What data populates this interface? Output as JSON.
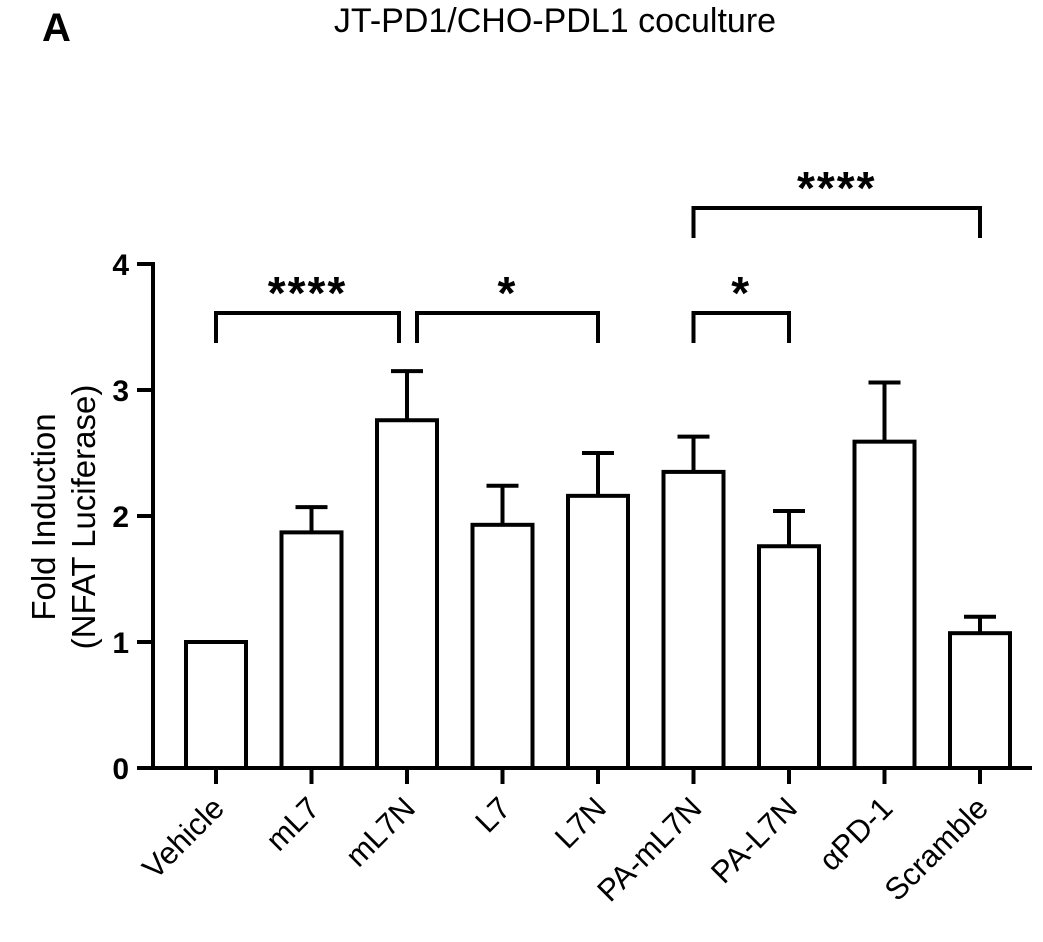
{
  "panel_label": "A",
  "chart_data": {
    "type": "bar",
    "title": "JT-PD1/CHO-PDL1 coculture",
    "ylabel_line1": "Fold Induction",
    "ylabel_line2": "(NFAT Luciferase)",
    "xlabel": "",
    "ylim": [
      0,
      4
    ],
    "yticks": [
      0,
      1,
      2,
      3,
      4
    ],
    "categories": [
      "Vehicle",
      "mL7",
      "mL7N",
      "L7",
      "L7N",
      "PA-mL7N",
      "PA-L7N",
      "αPD-1",
      "Scramble"
    ],
    "values": [
      1.0,
      1.87,
      2.76,
      1.93,
      2.16,
      2.35,
      1.76,
      2.59,
      1.07
    ],
    "errors": [
      0.0,
      0.2,
      0.39,
      0.31,
      0.34,
      0.28,
      0.28,
      0.47,
      0.13
    ],
    "significance": [
      {
        "from": 0,
        "to": 2,
        "label": "****",
        "level": 0
      },
      {
        "from": 2,
        "to": 4,
        "label": "*",
        "level": 0
      },
      {
        "from": 5,
        "to": 6,
        "label": "*",
        "level": 0
      },
      {
        "from": 5,
        "to": 8,
        "label": "****",
        "level": 1
      }
    ],
    "grid": false,
    "legend": "none"
  }
}
